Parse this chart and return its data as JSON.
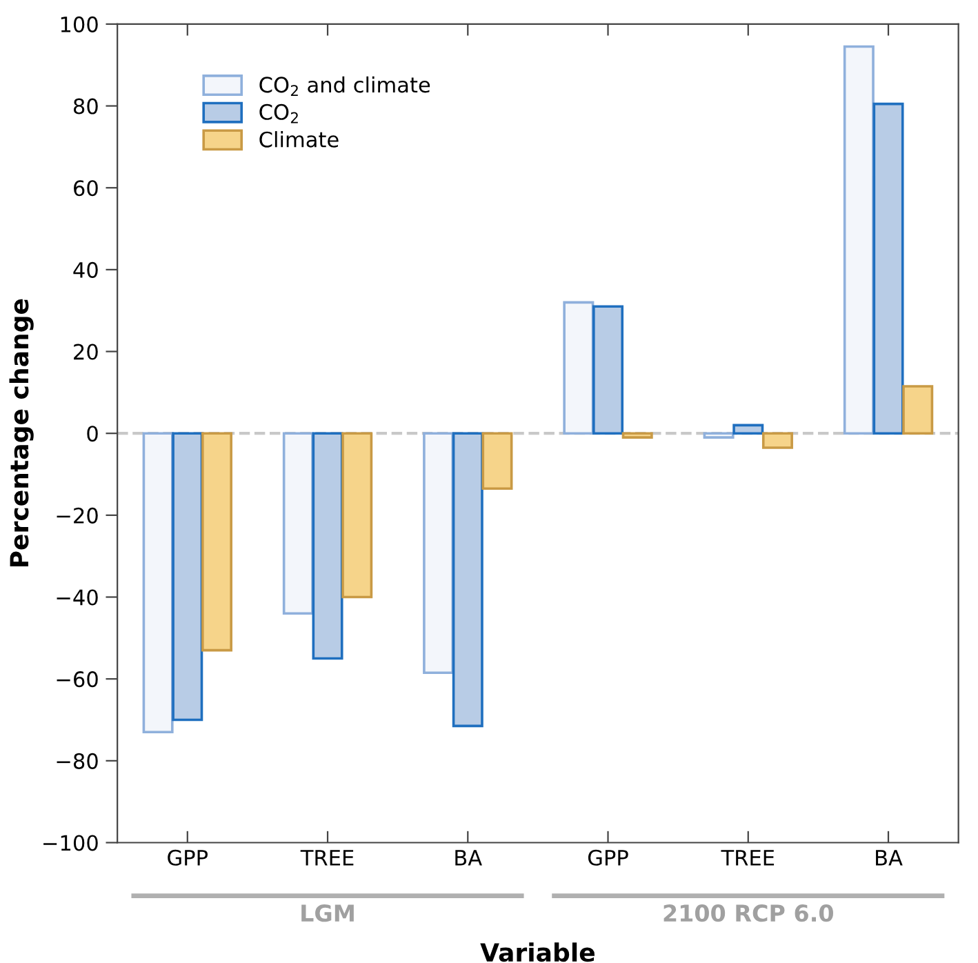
{
  "chart_data": {
    "type": "bar",
    "xlabel": "Variable",
    "ylabel": "Percentage change",
    "categories": [
      "GPP",
      "TREE",
      "BA",
      "GPP",
      "TREE",
      "BA"
    ],
    "series": [
      {
        "name": "CO$_{2}$ and climate",
        "color": "#f3f6fb",
        "values": [
          -73,
          -44,
          -58.5,
          32,
          -1,
          94.5
        ]
      },
      {
        "name": "CO$_{2}$",
        "color": "#b8cce6",
        "values": [
          -70,
          -55,
          -71.5,
          31,
          2,
          80.5
        ]
      },
      {
        "name": "Climate",
        "color": "#f6d48a",
        "values": [
          -53,
          -40,
          -13.5,
          -1,
          -3.5,
          11.5
        ]
      }
    ],
    "annotations": [
      "LGM",
      "2100 RCP 6.0"
    ],
    "ylim": [
      -100,
      100
    ],
    "yticks": [
      {
        "value": -100,
        "label": "−100"
      },
      {
        "value": -80,
        "label": "−80"
      },
      {
        "value": -60,
        "label": "−60"
      },
      {
        "value": -40,
        "label": "−40"
      },
      {
        "value": -20,
        "label": "−20"
      },
      0,
      20,
      40,
      60,
      80,
      100
    ],
    "ref_lines": [
      {
        "axis": "y",
        "value": 0,
        "color": "#c8c8c8",
        "line_style": "dashed"
      }
    ],
    "legend": "top left",
    "grid": false
  }
}
